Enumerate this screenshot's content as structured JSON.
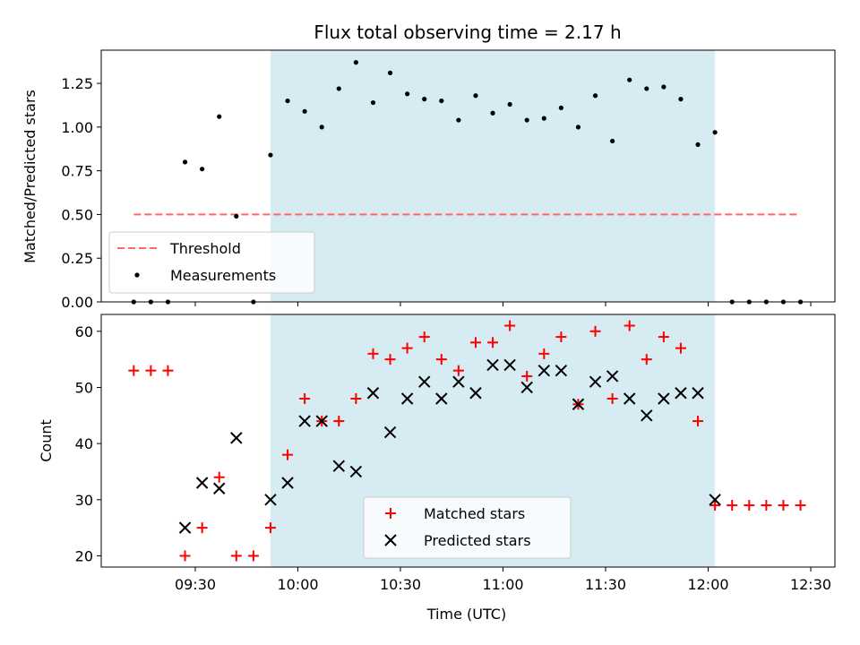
{
  "chart_data": [
    {
      "type": "scatter",
      "title": "Flux total observing time = 2.17 h",
      "xlabel": "",
      "ylabel": "Matched/Predicted stars",
      "x_tick_labels": [
        "09:30",
        "10:00",
        "10:30",
        "11:00",
        "11:30",
        "12:00",
        "12:30"
      ],
      "ylim": [
        0,
        1.44
      ],
      "y_ticks": [
        "0.00",
        "0.25",
        "0.50",
        "0.75",
        "1.00",
        "1.25"
      ],
      "highlight_span": [
        "09:52",
        "12:02"
      ],
      "highlight_color": "#add8e6",
      "legend_position": "lower left",
      "threshold": {
        "name": "Threshold",
        "value": 0.5,
        "x_range": [
          "09:12",
          "12:27"
        ],
        "color": "#ff6666"
      },
      "series": [
        {
          "name": "Measurements",
          "color": "#000000",
          "x": [
            "09:12",
            "09:17",
            "09:22",
            "09:27",
            "09:32",
            "09:37",
            "09:42",
            "09:47",
            "09:52",
            "09:57",
            "10:02",
            "10:07",
            "10:12",
            "10:17",
            "10:22",
            "10:27",
            "10:32",
            "10:37",
            "10:42",
            "10:47",
            "10:52",
            "10:57",
            "11:02",
            "11:07",
            "11:12",
            "11:17",
            "11:22",
            "11:27",
            "11:32",
            "11:37",
            "11:42",
            "11:47",
            "11:52",
            "11:57",
            "12:02",
            "12:07",
            "12:12",
            "12:17",
            "12:22",
            "12:27"
          ],
          "values": [
            0,
            0,
            0,
            0.8,
            0.76,
            1.06,
            0.49,
            0,
            0.84,
            1.15,
            1.09,
            1.0,
            1.22,
            1.37,
            1.14,
            1.31,
            1.19,
            1.16,
            1.15,
            1.04,
            1.18,
            1.08,
            1.13,
            1.04,
            1.05,
            1.11,
            1.0,
            1.18,
            0.92,
            1.27,
            1.22,
            1.23,
            1.16,
            0.9,
            0.97,
            0,
            0,
            0,
            0,
            0
          ]
        }
      ]
    },
    {
      "type": "scatter",
      "title": "",
      "xlabel": "Time (UTC)",
      "ylabel": "Count",
      "x_tick_labels": [
        "09:30",
        "10:00",
        "10:30",
        "11:00",
        "11:30",
        "12:00",
        "12:30"
      ],
      "ylim": [
        18,
        63
      ],
      "y_ticks": [
        "20",
        "30",
        "40",
        "50",
        "60"
      ],
      "highlight_span": [
        "09:52",
        "12:02"
      ],
      "highlight_color": "#add8e6",
      "legend_position": "lower center",
      "series": [
        {
          "name": "Matched stars",
          "marker": "plus",
          "color": "#ff0000",
          "x": [
            "09:12",
            "09:17",
            "09:22",
            "09:27",
            "09:32",
            "09:37",
            "09:42",
            "09:47",
            "09:52",
            "09:57",
            "10:02",
            "10:07",
            "10:12",
            "10:17",
            "10:22",
            "10:27",
            "10:32",
            "10:37",
            "10:42",
            "10:47",
            "10:52",
            "10:57",
            "11:02",
            "11:07",
            "11:12",
            "11:17",
            "11:22",
            "11:27",
            "11:32",
            "11:37",
            "11:42",
            "11:47",
            "11:52",
            "11:57",
            "12:02",
            "12:07",
            "12:12",
            "12:17",
            "12:22",
            "12:27"
          ],
          "values": [
            53,
            53,
            53,
            20,
            25,
            34,
            20,
            20,
            25,
            38,
            48,
            44,
            44,
            48,
            56,
            55,
            57,
            59,
            55,
            53,
            58,
            58,
            61,
            52,
            56,
            59,
            47,
            60,
            48,
            61,
            55,
            59,
            57,
            44,
            29,
            29,
            29,
            29,
            29,
            29
          ]
        },
        {
          "name": "Predicted stars",
          "marker": "x",
          "color": "#000000",
          "x": [
            "09:27",
            "09:32",
            "09:37",
            "09:42",
            "09:52",
            "09:57",
            "10:02",
            "10:07",
            "10:12",
            "10:17",
            "10:22",
            "10:27",
            "10:32",
            "10:37",
            "10:42",
            "10:47",
            "10:52",
            "10:57",
            "11:02",
            "11:07",
            "11:12",
            "11:17",
            "11:22",
            "11:27",
            "11:32",
            "11:37",
            "11:42",
            "11:47",
            "11:52",
            "11:57",
            "12:02"
          ],
          "values": [
            25,
            33,
            32,
            41,
            30,
            33,
            44,
            44,
            36,
            35,
            49,
            42,
            48,
            51,
            48,
            51,
            49,
            54,
            54,
            50,
            53,
            53,
            47,
            51,
            52,
            48,
            45,
            48,
            49,
            49,
            30
          ]
        }
      ]
    }
  ]
}
